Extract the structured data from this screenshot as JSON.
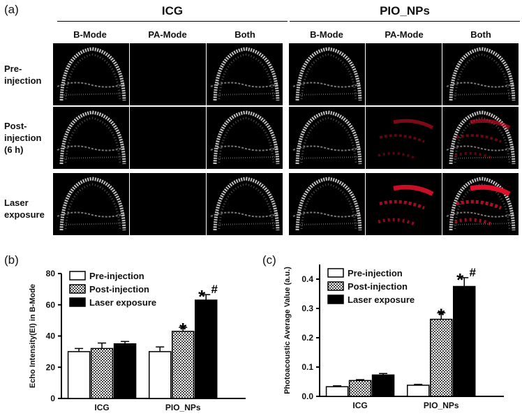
{
  "panel_a": {
    "letter": "(a)",
    "groups": [
      "ICG",
      "PIO_NPs"
    ],
    "columns": [
      "B-Mode",
      "PA-Mode",
      "Both",
      "B-Mode",
      "PA-Mode",
      "Both"
    ],
    "rows": [
      [
        "Pre-",
        "injection"
      ],
      [
        "Post-",
        "injection",
        "(6 h)"
      ],
      [
        "Laser",
        "exposure"
      ]
    ],
    "red_signal_level": [
      [
        0,
        0,
        0,
        0,
        0,
        0
      ],
      [
        0,
        0,
        0,
        0,
        0.55,
        0.6
      ],
      [
        0,
        0,
        0,
        0,
        0.9,
        1.0
      ]
    ],
    "signal_color": "#e0102a"
  },
  "chart_data": [
    {
      "panel": "(b)",
      "type": "bar",
      "categories": [
        "ICG",
        "PIO_NPs"
      ],
      "series": [
        {
          "name": "Pre-injection",
          "values": [
            30,
            30
          ],
          "errors": [
            2,
            3
          ],
          "fill": "#ffffff"
        },
        {
          "name": "Post-injection",
          "values": [
            32,
            43
          ],
          "errors": [
            3.5,
            2.5
          ],
          "fill": "hatch"
        },
        {
          "name": "Laser exposure",
          "values": [
            35,
            63
          ],
          "errors": [
            1.5,
            3.5
          ],
          "fill": "#000000"
        }
      ],
      "annotations": [
        {
          "category": 1,
          "series": 1,
          "text": "*"
        },
        {
          "category": 1,
          "series": 2,
          "text": "*#"
        }
      ],
      "xlabel": "",
      "ylabel": "Echo Intensity(EI) in B-Mode",
      "ylim": [
        0,
        80
      ],
      "yticks": [
        "0",
        "20",
        "40",
        "60",
        "80"
      ],
      "legend": "top-left"
    },
    {
      "panel": "(c)",
      "type": "bar",
      "categories": [
        "ICG",
        "PIO_NPs"
      ],
      "series": [
        {
          "name": "Pre-injection",
          "values": [
            0.033,
            0.038
          ],
          "errors": [
            0.003,
            0.003
          ],
          "fill": "#ffffff"
        },
        {
          "name": "Post-injection",
          "values": [
            0.054,
            0.263
          ],
          "errors": [
            0.003,
            0.022
          ],
          "fill": "hatch"
        },
        {
          "name": "Laser exposure",
          "values": [
            0.073,
            0.375
          ],
          "errors": [
            0.005,
            0.03
          ],
          "fill": "#000000"
        }
      ],
      "annotations": [
        {
          "category": 1,
          "series": 1,
          "text": "*"
        },
        {
          "category": 1,
          "series": 2,
          "text": "*#"
        }
      ],
      "xlabel": "",
      "ylabel": "Photoacoustic Average Value (a.u.)",
      "ylim": [
        0,
        0.45
      ],
      "yticks": [
        "0.0",
        "0.1",
        "0.2",
        "0.3",
        "0.4"
      ],
      "legend": "top-left"
    }
  ]
}
